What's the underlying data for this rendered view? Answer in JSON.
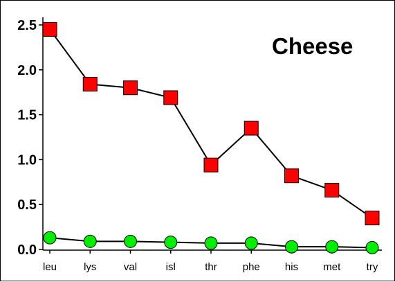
{
  "chart_data": {
    "type": "line",
    "title": "Cheese",
    "categories": [
      "leu",
      "lys",
      "val",
      "isl",
      "thr",
      "phe",
      "his",
      "met",
      "try"
    ],
    "ylim": [
      0,
      2.5
    ],
    "yticks": [
      "0.0",
      "0.5",
      "1.0",
      "1.5",
      "2.0",
      "2.5"
    ],
    "series": [
      {
        "values": [
          2.45,
          1.84,
          1.8,
          1.69,
          0.94,
          1.35,
          0.82,
          0.66,
          0.35
        ],
        "marker": "square",
        "color": "#ff0000"
      },
      {
        "values": [
          0.13,
          0.09,
          0.09,
          0.08,
          0.07,
          0.07,
          0.03,
          0.03,
          0.02
        ],
        "marker": "circle",
        "color": "#00ee00"
      }
    ],
    "grid": false,
    "legend": "none"
  }
}
